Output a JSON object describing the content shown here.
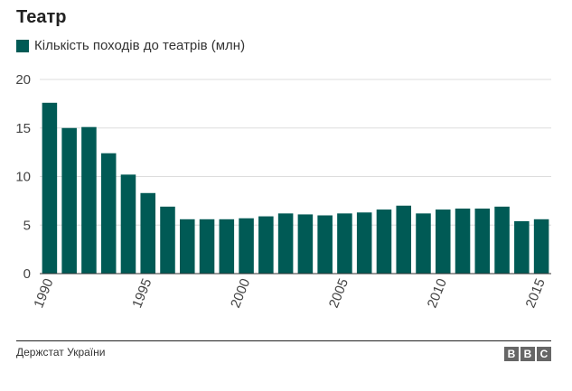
{
  "header": {
    "title": "Театр"
  },
  "legend": {
    "label": "Кількість походів до театрів (млн)"
  },
  "footer": {
    "source": "Держстат України",
    "logo": [
      "B",
      "B",
      "C"
    ]
  },
  "colors": {
    "bar": "#005a55",
    "grid": "#dddddd",
    "axis": "#333333"
  },
  "chart_data": {
    "type": "bar",
    "title": "Театр",
    "xlabel": "",
    "ylabel": "",
    "ylim": [
      0,
      20
    ],
    "yticks": [
      0,
      5,
      10,
      15,
      20
    ],
    "xtick_labels": [
      "1990",
      "1995",
      "2000",
      "2005",
      "2010",
      "2015"
    ],
    "categories": [
      "1990",
      "1991",
      "1992",
      "1993",
      "1994",
      "1995",
      "1996",
      "1997",
      "1998",
      "1999",
      "2000",
      "2001",
      "2002",
      "2003",
      "2004",
      "2005",
      "2006",
      "2007",
      "2008",
      "2009",
      "2010",
      "2011",
      "2012",
      "2013",
      "2014",
      "2015"
    ],
    "series": [
      {
        "name": "Кількість походів до театрів (млн)",
        "values": [
          17.6,
          15.0,
          15.1,
          12.4,
          10.2,
          8.3,
          6.9,
          5.6,
          5.6,
          5.6,
          5.7,
          5.9,
          6.2,
          6.1,
          6.0,
          6.2,
          6.3,
          6.6,
          7.0,
          6.2,
          6.6,
          6.7,
          6.7,
          6.9,
          5.4,
          5.6
        ]
      }
    ]
  }
}
